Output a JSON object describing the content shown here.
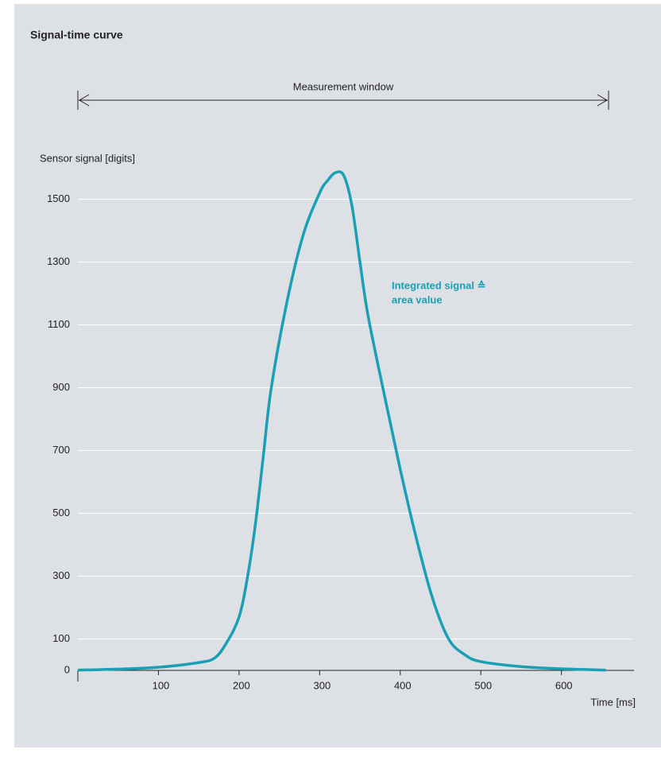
{
  "chart_data": {
    "type": "line",
    "title": "Signal-time curve",
    "window_label": "Measurement window",
    "y_label": "Sensor signal [digits]",
    "x_label": "Time [ms]",
    "annotation": [
      "Integrated signal ≙",
      "area value"
    ],
    "x": [
      0,
      50,
      100,
      150,
      170,
      185,
      200,
      210,
      220,
      230,
      240,
      260,
      280,
      300,
      310,
      320,
      330,
      340,
      350,
      360,
      380,
      400,
      420,
      440,
      460,
      480,
      500,
      550,
      600,
      655
    ],
    "series": [
      {
        "color": "#1a9fb5",
        "values": [
          1,
          4,
          10,
          25,
          40,
          90,
          170,
          290,
          460,
          680,
          900,
          1180,
          1390,
          1520,
          1560,
          1585,
          1575,
          1480,
          1300,
          1130,
          880,
          640,
          420,
          230,
          100,
          50,
          28,
          12,
          5,
          1
        ]
      }
    ],
    "xlim": [
      0,
      690
    ],
    "ylim": [
      0,
      1600
    ],
    "xticks": [
      100,
      200,
      300,
      400,
      500,
      600
    ],
    "yticks": [
      0,
      100,
      300,
      500,
      700,
      900,
      1100,
      1300,
      1500
    ],
    "grid": true
  }
}
